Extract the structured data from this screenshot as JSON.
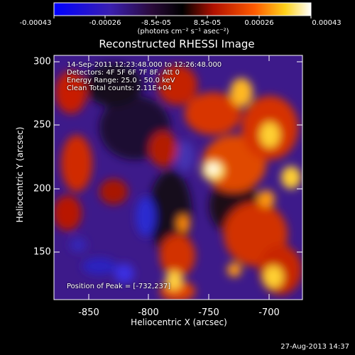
{
  "colorbar": {
    "ticks": [
      "-0.00043",
      "-0.00026",
      "-8.5e-05",
      "8.5e-05",
      "0.00026",
      "0.00043"
    ],
    "units": "(photons cm⁻² s⁻¹ asec⁻²)"
  },
  "title": "Reconstructed RHESSI Image",
  "info": {
    "line1": "14-Sep-2011 12:23:48.000 to 12:26:48.000",
    "line2": "Detectors: 4F 5F 6F 7F 8F, Att 0",
    "line3": "Energy Range: 25.0 - 50.0 keV",
    "line4": "Clean    Total counts: 2.11E+04"
  },
  "peak_label": "Position of Peak = [-732,237]",
  "footer_timestamp": "27-Aug-2013 14:37",
  "chart_data": {
    "type": "heatmap",
    "title": "Reconstructed RHESSI Image",
    "xlabel": "Heliocentric X (arcsec)",
    "ylabel": "Heliocentric Y (arcsec)",
    "x_ticks": [
      "-850",
      "-800",
      "-750",
      "-700"
    ],
    "x_tick_values": [
      -850,
      -800,
      -750,
      -700
    ],
    "y_ticks": [
      "150",
      "200",
      "250",
      "300"
    ],
    "y_tick_values": [
      150,
      200,
      250,
      300
    ],
    "xlim": [
      -877,
      -681
    ],
    "ylim": [
      110,
      305
    ],
    "zlim": [
      -0.00043,
      0.00043
    ],
    "colormap": "blue-purple-black-red-orange-yellow-white",
    "peak_position": [
      -732,
      237
    ]
  }
}
